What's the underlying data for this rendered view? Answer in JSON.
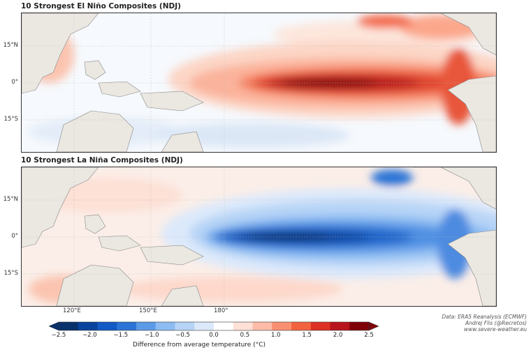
{
  "panels": [
    {
      "title": "10 Strongest El Niño Composites (NDJ)",
      "kind": "warm"
    },
    {
      "title": "10 Strongest La Niña Composites (NDJ)",
      "kind": "cold"
    }
  ],
  "lat_labels": [
    "15°N",
    "0°",
    "15°S"
  ],
  "lon_labels": [
    "120°E",
    "150°E",
    "180°"
  ],
  "colorbar": {
    "ticks": [
      "−2.5",
      "−2.0",
      "−1.5",
      "−1.0",
      "−0.5",
      "0.0",
      "0.5",
      "1.0",
      "1.5",
      "2.0",
      "2.5"
    ],
    "label": "Difference from average temperature (°C)",
    "colors": [
      "#08306b",
      "#08449c",
      "#1159c4",
      "#2b74d6",
      "#5b9be6",
      "#8cbcf2",
      "#b7d4f6",
      "#dce9fb",
      "#ffffff",
      "#fde0d6",
      "#fcbca8",
      "#fb9071",
      "#f3623f",
      "#dd3024",
      "#b8141d",
      "#800008"
    ]
  },
  "credit": {
    "line1": "Data: ERA5 Reanalysis (ECMWF)",
    "line2": "Andrej Flis (@Recretos)",
    "line3": "www.severe-weather.eu"
  },
  "land_color": "#ebe7e1"
}
